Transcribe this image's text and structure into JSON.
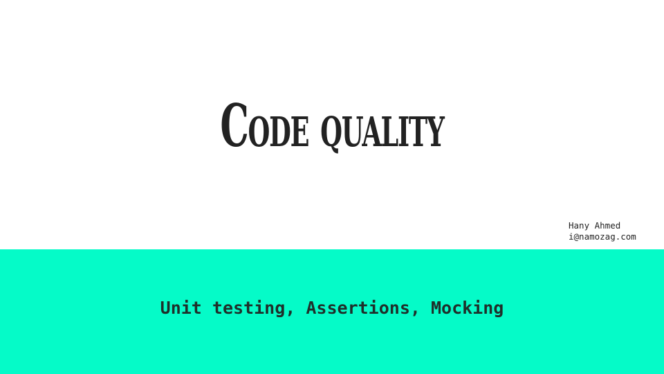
{
  "slide": {
    "title": "Code quality",
    "author": {
      "name": "Hany Ahmed",
      "email": "i@namozag.com"
    },
    "subtitle": "Unit testing, Assertions, Mocking"
  },
  "colors": {
    "background": "#ffffff",
    "band": "#05fbc8",
    "text": "#222222"
  }
}
